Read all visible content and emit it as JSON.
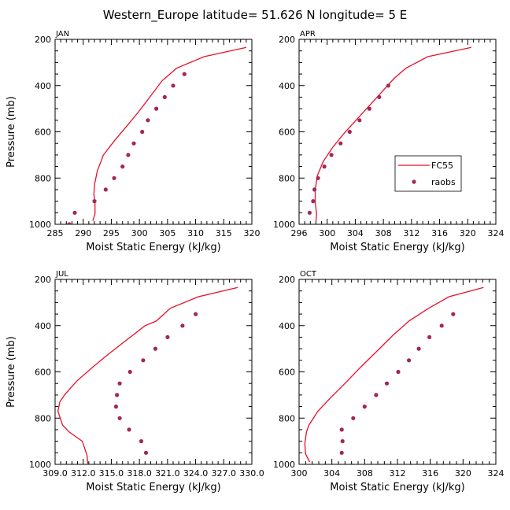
{
  "figure": {
    "title": "Western_Europe  latitude= 51.626 N longitude= 5 E",
    "y_axis_label": "Pressure (mb)",
    "x_axis_label": "Moist Static Energy (kJ/kg)",
    "legend": {
      "model_label": "FC55",
      "obs_label": "raobs",
      "placement": "inside APR panel, right"
    },
    "colors": {
      "model": "#e8102a",
      "obs": "#a3265a",
      "axis": "#000000"
    }
  },
  "chart_data": [
    {
      "type": "line",
      "panel_label": "JAN",
      "xlim": [
        285,
        320
      ],
      "ylim": [
        1000,
        200
      ],
      "y_inverted": true,
      "xticks": [
        285,
        290,
        295,
        300,
        305,
        310,
        315,
        320
      ],
      "xtick_labels": [
        "285",
        "290",
        "295",
        "300",
        "305",
        "310",
        "315",
        "320"
      ],
      "yticks": [
        200,
        400,
        600,
        800,
        1000
      ],
      "ytick_labels": [
        "200",
        "400",
        "600",
        "800",
        "1000"
      ],
      "series": [
        {
          "name": "FC55",
          "kind": "line",
          "points": [
            [
              291.7,
              985
            ],
            [
              292.1,
              955
            ],
            [
              292.1,
              905
            ],
            [
              291.9,
              870
            ],
            [
              292,
              830
            ],
            [
              292.5,
              770
            ],
            [
              293.6,
              700
            ],
            [
              295.5,
              640
            ],
            [
              297.6,
              580
            ],
            [
              299.8,
              515
            ],
            [
              302,
              445
            ],
            [
              304,
              380
            ],
            [
              306.6,
              325
            ],
            [
              311.5,
              275
            ],
            [
              319,
              235
            ]
          ]
        },
        {
          "name": "raobs",
          "kind": "scatter",
          "points": [
            [
              287.5,
              1000
            ],
            [
              288.5,
              950
            ],
            [
              292,
              900
            ],
            [
              294,
              850
            ],
            [
              295.5,
              800
            ],
            [
              297,
              750
            ],
            [
              298,
              700
            ],
            [
              299,
              650
            ],
            [
              300.5,
              600
            ],
            [
              301.5,
              550
            ],
            [
              303,
              500
            ],
            [
              304.5,
              450
            ],
            [
              306,
              400
            ],
            [
              308,
              350
            ]
          ]
        }
      ]
    },
    {
      "type": "line",
      "panel_label": "APR",
      "xlim": [
        296,
        324
      ],
      "ylim": [
        1000,
        200
      ],
      "y_inverted": true,
      "xticks": [
        296,
        300,
        304,
        308,
        312,
        316,
        320,
        324
      ],
      "xtick_labels": [
        "296",
        "300",
        "304",
        "308",
        "312",
        "316",
        "320",
        "324"
      ],
      "yticks": [
        200,
        400,
        600,
        800,
        1000
      ],
      "ytick_labels": [
        "200",
        "400",
        "600",
        "800",
        "1000"
      ],
      "series": [
        {
          "name": "FC55",
          "kind": "line",
          "points": [
            [
              298.4,
              990
            ],
            [
              298.5,
              955
            ],
            [
              298.3,
              905
            ],
            [
              298.3,
              850
            ],
            [
              298.6,
              790
            ],
            [
              299.4,
              730
            ],
            [
              300.7,
              670
            ],
            [
              302.3,
              610
            ],
            [
              304.1,
              550
            ],
            [
              305.9,
              490
            ],
            [
              307.7,
              430
            ],
            [
              309.5,
              370
            ],
            [
              311.2,
              325
            ],
            [
              314.3,
              275
            ],
            [
              320.5,
              235
            ]
          ]
        },
        {
          "name": "raobs",
          "kind": "scatter",
          "points": [
            [
              297.5,
              950
            ],
            [
              298,
              900
            ],
            [
              298.2,
              850
            ],
            [
              298.7,
              800
            ],
            [
              299.6,
              750
            ],
            [
              300.6,
              700
            ],
            [
              301.9,
              650
            ],
            [
              303.2,
              600
            ],
            [
              304.6,
              550
            ],
            [
              306,
              500
            ],
            [
              307.4,
              450
            ],
            [
              308.7,
              400
            ]
          ]
        }
      ]
    },
    {
      "type": "line",
      "panel_label": "JUL",
      "xlim": [
        309,
        330
      ],
      "ylim": [
        1000,
        200
      ],
      "y_inverted": true,
      "xticks": [
        309,
        312,
        315,
        318,
        321,
        324,
        327,
        330
      ],
      "xtick_labels": [
        "309.0",
        "312.0",
        "315.0",
        "318.0",
        "321.0",
        "324.0",
        "327.0",
        "330.0"
      ],
      "yticks": [
        200,
        400,
        600,
        800,
        1000
      ],
      "ytick_labels": [
        "200",
        "400",
        "600",
        "800",
        "1000"
      ],
      "series": [
        {
          "name": "FC55",
          "kind": "line",
          "points": [
            [
              312.5,
              1000
            ],
            [
              312.4,
              960
            ],
            [
              311.9,
              900
            ],
            [
              310.5,
              860
            ],
            [
              309.8,
              830
            ],
            [
              309.3,
              770
            ],
            [
              309.5,
              730
            ],
            [
              310,
              700
            ],
            [
              311.3,
              640
            ],
            [
              313,
              580
            ],
            [
              314.8,
              520
            ],
            [
              316.7,
              460
            ],
            [
              318.6,
              400
            ],
            [
              319.8,
              380
            ],
            [
              321.3,
              325
            ],
            [
              324.3,
              275
            ],
            [
              328.5,
              235
            ]
          ]
        },
        {
          "name": "raobs",
          "kind": "scatter",
          "points": [
            [
              318.7,
              950
            ],
            [
              318.2,
              900
            ],
            [
              316.9,
              850
            ],
            [
              315.9,
              800
            ],
            [
              315.5,
              750
            ],
            [
              315.6,
              700
            ],
            [
              315.9,
              650
            ],
            [
              317,
              600
            ],
            [
              318.4,
              550
            ],
            [
              319.7,
              500
            ],
            [
              321,
              450
            ],
            [
              322.6,
              400
            ],
            [
              324,
              350
            ]
          ]
        }
      ]
    },
    {
      "type": "line",
      "panel_label": "OCT",
      "xlim": [
        300,
        324
      ],
      "ylim": [
        1000,
        200
      ],
      "y_inverted": true,
      "xticks": [
        300,
        304,
        308,
        312,
        316,
        320,
        324
      ],
      "xtick_labels": [
        "300",
        "304",
        "308",
        "312",
        "316",
        "320",
        "324"
      ],
      "yticks": [
        200,
        400,
        600,
        800,
        1000
      ],
      "ytick_labels": [
        "200",
        "400",
        "600",
        "800",
        "1000"
      ],
      "series": [
        {
          "name": "FC55",
          "kind": "line",
          "points": [
            [
              301.3,
              990
            ],
            [
              300.8,
              955
            ],
            [
              300.7,
              910
            ],
            [
              300.9,
              860
            ],
            [
              301.2,
              830
            ],
            [
              302.3,
              770
            ],
            [
              303.9,
              710
            ],
            [
              305.6,
              650
            ],
            [
              307.5,
              580
            ],
            [
              309.5,
              510
            ],
            [
              311.5,
              440
            ],
            [
              313.4,
              380
            ],
            [
              315.8,
              325
            ],
            [
              318.3,
              275
            ],
            [
              322.5,
              235
            ]
          ]
        },
        {
          "name": "raobs",
          "kind": "scatter",
          "points": [
            [
              305.2,
              950
            ],
            [
              305.3,
              900
            ],
            [
              305.2,
              850
            ],
            [
              306.6,
              800
            ],
            [
              308,
              750
            ],
            [
              309.4,
              700
            ],
            [
              310.7,
              650
            ],
            [
              312.1,
              600
            ],
            [
              313.4,
              550
            ],
            [
              314.6,
              500
            ],
            [
              315.9,
              450
            ],
            [
              317.4,
              400
            ],
            [
              318.8,
              350
            ]
          ]
        }
      ]
    }
  ]
}
